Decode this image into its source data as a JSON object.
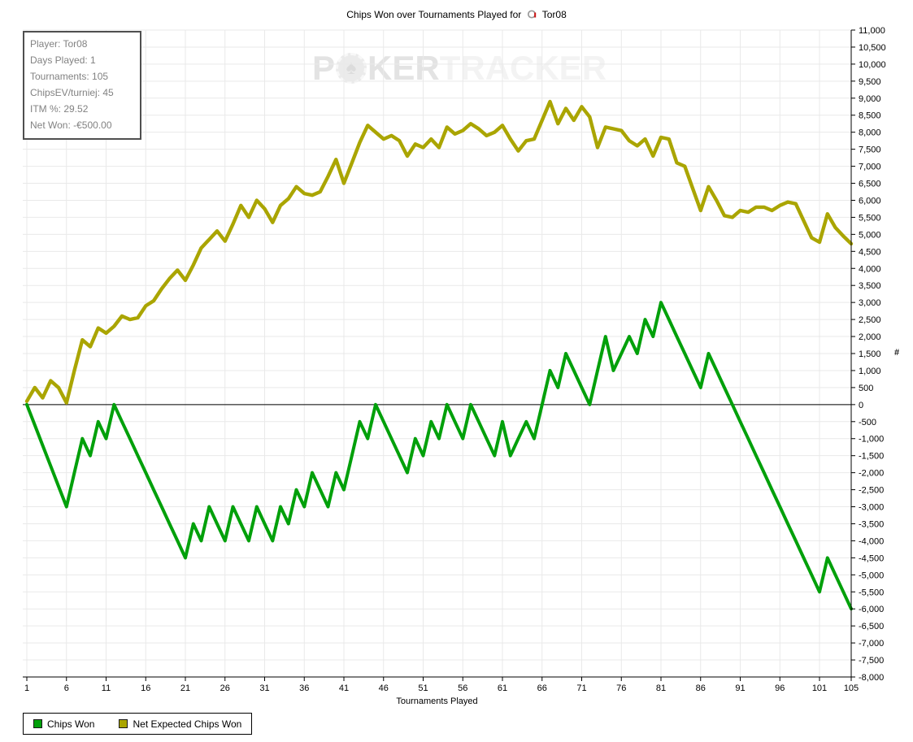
{
  "title": {
    "prefix": "Chips Won over Tournaments Played for",
    "player": "Tor08"
  },
  "info_box": {
    "rows": [
      "Player: Tor08",
      "Days Played: 1",
      "Tournaments: 105",
      "ChipsEV/turniej: 45",
      "ITM %: 29.52",
      "Net Won: -€500.00"
    ]
  },
  "watermark": {
    "left": "P",
    "chip_symbol": "♠",
    "mid": "KER",
    "right": "TRACKER"
  },
  "axis_marker": "#",
  "chart_data": {
    "type": "line",
    "title": "Chips Won over Tournaments Played for Tor08",
    "xlabel": "Tournaments Played",
    "ylabel": "",
    "xlim": [
      1,
      105
    ],
    "ylim": [
      -8000,
      11000
    ],
    "y_tick_step": 500,
    "x_ticks": [
      1,
      6,
      11,
      16,
      21,
      26,
      31,
      36,
      41,
      46,
      51,
      56,
      61,
      66,
      71,
      76,
      81,
      86,
      91,
      96,
      101,
      105
    ],
    "grid": true,
    "zero_line": true,
    "legend_position": "bottom-left",
    "colors": {
      "grid": "#e9e9e9",
      "axis": "#000000",
      "zero_line": "#000000",
      "background": "#ffffff"
    },
    "series": [
      {
        "name": "Chips Won",
        "color": "#00a00a",
        "values": [
          0,
          -600,
          -1200,
          -1800,
          -2400,
          -3000,
          -2000,
          -1000,
          -1500,
          -500,
          -1000,
          0,
          -500,
          -1000,
          -1500,
          -2000,
          -2500,
          -3000,
          -3500,
          -4000,
          -4500,
          -3500,
          -4000,
          -3000,
          -3500,
          -4000,
          -3000,
          -3500,
          -4000,
          -3000,
          -3500,
          -4000,
          -3000,
          -3500,
          -2500,
          -3000,
          -2000,
          -2500,
          -3000,
          -2000,
          -2500,
          -1500,
          -500,
          -1000,
          0,
          -500,
          -1000,
          -1500,
          -2000,
          -1000,
          -1500,
          -500,
          -1000,
          0,
          -500,
          -1000,
          0,
          -500,
          -1000,
          -1500,
          -500,
          -1500,
          -1000,
          -500,
          -1000,
          0,
          1000,
          500,
          1500,
          1000,
          500,
          0,
          1000,
          2000,
          1000,
          1500,
          2000,
          1500,
          2500,
          2000,
          3000,
          2500,
          2000,
          1500,
          1000,
          500,
          1500,
          1000,
          500,
          0,
          -500,
          -1000,
          -1500,
          -2000,
          -2500,
          -3000,
          -3500,
          -4000,
          -4500,
          -5000,
          -5500,
          -4500,
          -5000,
          -5500,
          -6000
        ]
      },
      {
        "name": "Net Expected Chips Won",
        "color": "#aaa500",
        "values": [
          100,
          500,
          200,
          700,
          500,
          50,
          1000,
          1900,
          1700,
          2250,
          2100,
          2300,
          2600,
          2500,
          2550,
          2900,
          3050,
          3400,
          3700,
          3950,
          3650,
          4100,
          4600,
          4850,
          5100,
          4800,
          5300,
          5850,
          5500,
          6000,
          5750,
          5350,
          5850,
          6050,
          6400,
          6200,
          6150,
          6250,
          6700,
          7200,
          6500,
          7100,
          7700,
          8200,
          8000,
          7800,
          7900,
          7750,
          7300,
          7650,
          7550,
          7800,
          7550,
          8150,
          7950,
          8050,
          8250,
          8100,
          7900,
          8000,
          8200,
          7800,
          7450,
          7750,
          7800,
          8350,
          8900,
          8250,
          8700,
          8350,
          8750,
          8450,
          7550,
          8150,
          8100,
          8050,
          7750,
          7600,
          7800,
          7300,
          7850,
          7800,
          7100,
          7000,
          6350,
          5700,
          6400,
          6000,
          5550,
          5500,
          5700,
          5650,
          5800,
          5800,
          5700,
          5850,
          5950,
          5900,
          5400,
          4900,
          4770,
          5600,
          5200,
          4950,
          4725
        ]
      }
    ]
  }
}
